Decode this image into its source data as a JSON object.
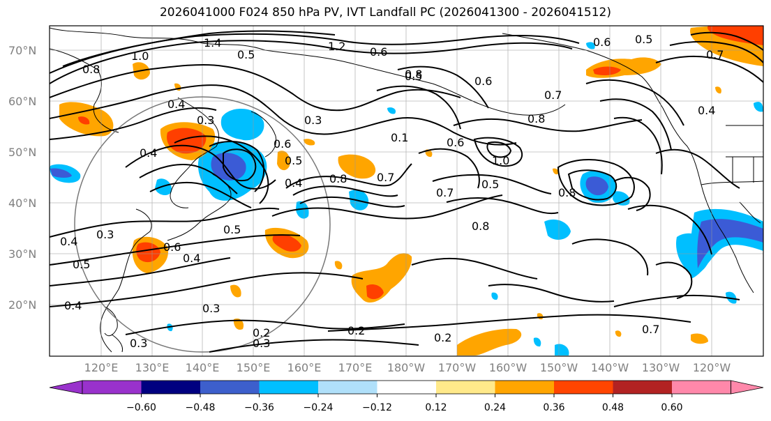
{
  "title": "2026041000 F024 850 hPa PV, IVT Landfall PC (2026041300 - 2026041512)",
  "map": {
    "lat_labels": [
      "70°N",
      "60°N",
      "50°N",
      "40°N",
      "30°N",
      "20°N"
    ],
    "lon_labels": [
      "120°E",
      "130°E",
      "140°E",
      "150°E",
      "160°E",
      "170°E",
      "180°W",
      "170°W",
      "160°W",
      "150°W",
      "140°W",
      "130°W",
      "120°W"
    ],
    "contour_labels": [
      "1.4",
      "1.2",
      "1.0",
      "0.8",
      "0.6",
      "0.5",
      "0.4",
      "0.3",
      "0.4",
      "0.5",
      "0.4",
      "0.8",
      "0.7",
      "0.1",
      "0.5",
      "0.6",
      "0.7",
      "0.8",
      "0.6",
      "0.5",
      "0.4",
      "0.3",
      "0.5",
      "0.4",
      "0.3",
      "0.4",
      "0.3",
      "0.6",
      "0.2",
      "0.3",
      "0.2",
      "0.2",
      "0.3",
      "0.8",
      "0.5",
      "0.8",
      "0.6",
      "0.4",
      "0.7",
      "0.8",
      "0.7",
      "0.6",
      "0.5",
      "1.0",
      "0.7"
    ],
    "shading_colors": {
      "strong_positive": "#ff3f00",
      "positive": "#ffa500",
      "weak_positive": "#ffe98a",
      "weak_negative": "#aee0ff",
      "negative": "#00bfff",
      "strong_negative": "#3b5bd6"
    }
  },
  "colorbar": {
    "ticks": [
      "−0.60",
      "−0.48",
      "−0.36",
      "−0.24",
      "−0.12",
      "0.12",
      "0.24",
      "0.36",
      "0.48",
      "0.60"
    ],
    "colors": [
      "#9932cc",
      "#000080",
      "#3d5fcc",
      "#00bfff",
      "#b0e0fa",
      "#ffffff",
      "#ffe98a",
      "#ffa500",
      "#ff4500",
      "#b22222",
      "#ff88aa"
    ],
    "under_color": "#9932cc",
    "over_color": "#ff88aa"
  }
}
